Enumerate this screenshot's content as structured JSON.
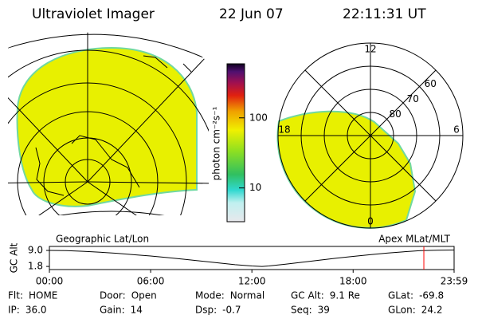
{
  "header": {
    "title": "Ultraviolet Imager",
    "date": "22 Jun 07",
    "time": "22:11:31 UT"
  },
  "left_panel": {
    "label": "Geographic Lat/Lon"
  },
  "colorbar": {
    "label": "photon cm⁻²s⁻¹",
    "scale": "log",
    "lim": [
      3.3,
      590
    ],
    "ticks": [
      10,
      100
    ]
  },
  "polar": {
    "label": "Apex MLat/MLT",
    "latlim": [
      50,
      90
    ],
    "lat_rings": [
      60,
      70,
      80
    ],
    "mlt_labels": [
      12,
      18,
      6,
      0
    ]
  },
  "chart_data": {
    "type": "line",
    "ylabel": "GC Alt",
    "x": [
      0,
      1,
      2,
      3,
      4,
      5,
      6,
      7,
      8,
      9,
      10,
      11,
      12,
      12.6,
      13,
      14,
      15,
      16,
      17,
      18,
      19,
      20,
      21,
      22,
      23,
      23.983
    ],
    "values": [
      9.0,
      8.9,
      8.6,
      8.2,
      7.7,
      7.1,
      6.5,
      5.8,
      5.0,
      4.2,
      3.4,
      2.6,
      2.0,
      1.8,
      2.0,
      2.8,
      3.7,
      4.6,
      5.5,
      6.3,
      7.1,
      7.8,
      8.4,
      8.9,
      9.1,
      9.2
    ],
    "color": "#000000",
    "xlim": [
      0,
      23.983
    ],
    "xticks": [
      {
        "value": 0,
        "label": "00:00"
      },
      {
        "value": 6,
        "label": "06:00"
      },
      {
        "value": 12,
        "label": "12:00"
      },
      {
        "value": 18,
        "label": "18:00"
      },
      {
        "value": 23.983,
        "label": "23:59"
      }
    ],
    "ylim": [
      0.4,
      10.8
    ],
    "yticks": [
      {
        "value": 9,
        "label": "9.0"
      },
      {
        "value": 1.8,
        "label": "1.8"
      }
    ],
    "marker_x": 22.19,
    "marker_color": "#ff0000"
  },
  "status": [
    [
      {
        "label": "Flt:",
        "value": "HOME"
      },
      {
        "label": "Door:",
        "value": "Open"
      },
      {
        "label": "Mode:",
        "value": "Normal"
      },
      {
        "label": "GC Alt:",
        "value": "9.1 Re"
      },
      {
        "label": "GLat:",
        "value": "-69.8"
      }
    ],
    [
      {
        "label": "IP:",
        "value": "36.0"
      },
      {
        "label": "Gain:",
        "value": "14"
      },
      {
        "label": "Dsp:",
        "value": "-0.7"
      },
      {
        "label": "Seq:",
        "value": "39"
      },
      {
        "label": "GLon:",
        "value": "24.2"
      }
    ]
  ]
}
